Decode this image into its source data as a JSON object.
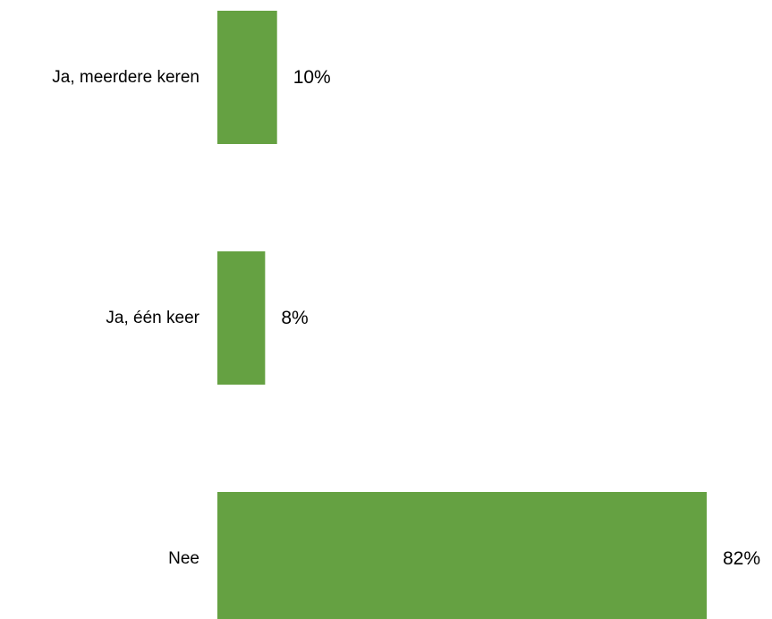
{
  "chart_data": {
    "type": "bar",
    "orientation": "horizontal",
    "categories": [
      "Ja, meerdere keren",
      "Ja, één keer",
      "Nee"
    ],
    "values": [
      10,
      8,
      82
    ],
    "value_labels": [
      "10%",
      "8%",
      "82%"
    ],
    "unit": "%",
    "xlim": [
      0,
      82
    ],
    "grid": false,
    "legend": "none",
    "bar_color": "#65A142"
  }
}
